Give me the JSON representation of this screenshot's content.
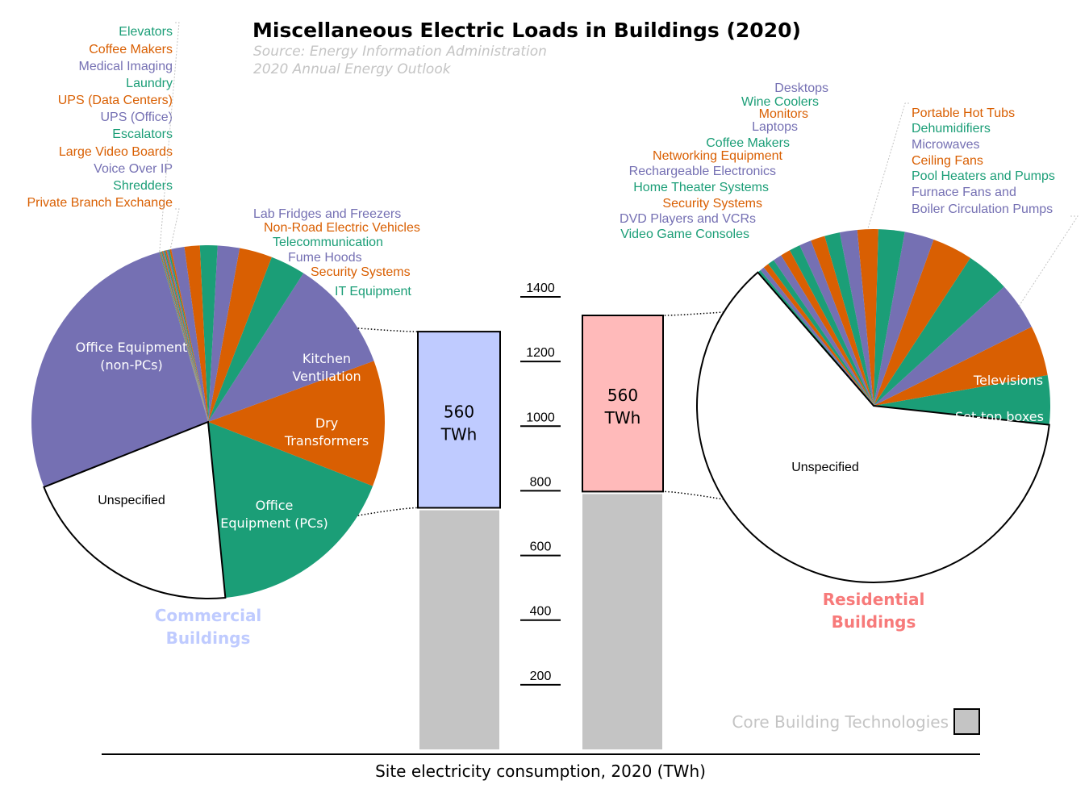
{
  "colors": {
    "purple": "#7570b3",
    "orange": "#d95f02",
    "green": "#1b9e77",
    "unspecified": "#ffffff",
    "commercial": "#bfcbff",
    "residential": "#ffbaba",
    "core": "#c4c4c4",
    "commercial_text": "#bfcbff",
    "residential_text": "#f77a7a"
  },
  "header": {
    "title": "Miscellaneous Electric Loads in Buildings (2020)",
    "source_line1": "Source: Energy Information Administration",
    "source_line2": "2020 Annual Energy Outlook"
  },
  "chart_data": [
    {
      "type": "pie",
      "name": "Commercial Buildings",
      "label_lines": [
        "Commercial",
        "Buildings"
      ],
      "total_twh": 560,
      "slices": [
        {
          "label": "Office Equipment (PCs)",
          "lines": [
            "Office",
            "Equipment (PCs)"
          ],
          "color": "green",
          "value": 17.5
        },
        {
          "label": "Dry Transformers",
          "lines": [
            "Dry",
            "Transformers"
          ],
          "color": "orange",
          "value": 11.5
        },
        {
          "label": "Kitchen Ventilation",
          "lines": [
            "Kitchen",
            "Ventilation"
          ],
          "color": "purple",
          "value": 10.3
        },
        {
          "label": "IT Equipment",
          "color": "green",
          "value": 3.2
        },
        {
          "label": "Security Systems",
          "color": "orange",
          "value": 3.0
        },
        {
          "label": "Fume Hoods",
          "color": "purple",
          "value": 2.0
        },
        {
          "label": "Telecommunication",
          "color": "green",
          "value": 1.6
        },
        {
          "label": "Non-Road Electric Vehicles",
          "color": "orange",
          "value": 1.4
        },
        {
          "label": "Lab Fridges and Freezers",
          "color": "purple",
          "value": 1.2
        },
        {
          "label": "Private Branch Exchange",
          "color": "orange",
          "value": 0.16
        },
        {
          "label": "Shredders",
          "color": "green",
          "value": 0.14
        },
        {
          "label": "Voice Over IP",
          "color": "purple",
          "value": 0.13
        },
        {
          "label": "Large Video Boards",
          "color": "orange",
          "value": 0.12
        },
        {
          "label": "Escalators",
          "color": "green",
          "value": 0.11
        },
        {
          "label": "UPS (Office)",
          "color": "purple",
          "value": 0.1
        },
        {
          "label": "UPS (Data Centers)",
          "color": "orange",
          "value": 0.09
        },
        {
          "label": "Laundry",
          "color": "green",
          "value": 0.08
        },
        {
          "label": "Medical Imaging",
          "color": "purple",
          "value": 0.07
        },
        {
          "label": "Coffee Makers",
          "color": "orange",
          "value": 0.06
        },
        {
          "label": "Elevators",
          "color": "green",
          "value": 0.05
        },
        {
          "label": "Office Equipment (non-PCs)",
          "lines": [
            "Office Equipment",
            "(non-PCs)"
          ],
          "color": "purple",
          "value": 26.5
        },
        {
          "label": "Unspecified",
          "color": "unspecified",
          "value": 20.5
        }
      ]
    },
    {
      "type": "pie",
      "name": "Residential Buildings",
      "label_lines": [
        "Residential",
        "Buildings"
      ],
      "total_twh": 560,
      "slices": [
        {
          "label": "Set-top boxes",
          "color": "green",
          "value": 4.5
        },
        {
          "label": "Televisions",
          "color": "orange",
          "value": 4.6
        },
        {
          "label": "Furnace Fans and Boiler Circulation Pumps",
          "lines": [
            "Furnace Fans and",
            "Boiler Circulation Pumps"
          ],
          "color": "purple",
          "value": 4.4
        },
        {
          "label": "Pool Heaters and Pumps",
          "color": "green",
          "value": 4.0
        },
        {
          "label": "Ceiling Fans",
          "color": "orange",
          "value": 3.7
        },
        {
          "label": "Microwaves",
          "color": "purple",
          "value": 2.7
        },
        {
          "label": "Dehumidifiers",
          "color": "green",
          "value": 2.4
        },
        {
          "label": "Portable Hot Tubs",
          "color": "orange",
          "value": 1.9
        },
        {
          "label": "Desktops",
          "color": "purple",
          "value": 1.6
        },
        {
          "label": "Wine Coolers",
          "color": "green",
          "value": 1.4
        },
        {
          "label": "Monitors",
          "color": "orange",
          "value": 1.3
        },
        {
          "label": "Laptops",
          "color": "purple",
          "value": 1.1
        },
        {
          "label": "Coffee Makers",
          "color": "green",
          "value": 1.0
        },
        {
          "label": "Networking Equipment",
          "color": "orange",
          "value": 0.9
        },
        {
          "label": "Rechargeable Electronics",
          "color": "purple",
          "value": 0.8
        },
        {
          "label": "Home Theater Systems",
          "color": "green",
          "value": 0.6
        },
        {
          "label": "Security Systems",
          "color": "orange",
          "value": 0.5
        },
        {
          "label": "DVD Players and VCRs",
          "color": "purple",
          "value": 0.4
        },
        {
          "label": "Video Game Consoles",
          "color": "green",
          "value": 0.3
        },
        {
          "label": "Unspecified",
          "color": "unspecified",
          "value": 61.9
        }
      ]
    },
    {
      "type": "bar",
      "name": "Site electricity consumption, 2020 (TWh)",
      "xlabel": "Site electricity consumption, 2020 (TWh)",
      "ylim": [
        0,
        1400
      ],
      "yticks": [
        200,
        400,
        600,
        800,
        1000,
        1200,
        1400
      ],
      "bars": [
        {
          "name": "Commercial",
          "core": 740,
          "mel": 560,
          "label": "560\nTWh",
          "label_lines": [
            "560",
            "TWh"
          ]
        },
        {
          "name": "Residential",
          "core": 790,
          "mel": 560,
          "label": "560\nTWh",
          "label_lines": [
            "560",
            "TWh"
          ]
        }
      ],
      "legend": "Core Building Technologies"
    }
  ]
}
